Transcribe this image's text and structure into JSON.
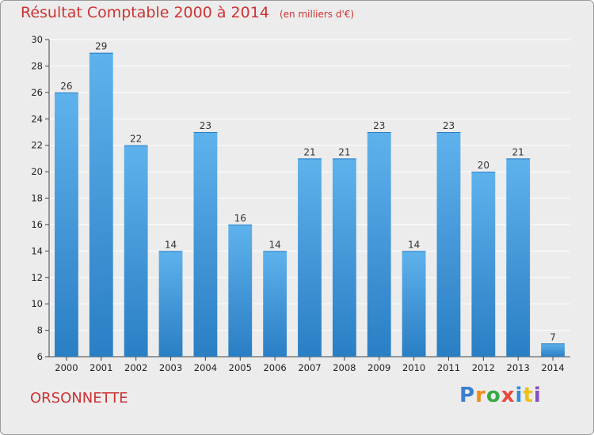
{
  "header": {
    "title": "Résultat Comptable 2000 à 2014",
    "subtitle": "(en milliers d'€)"
  },
  "footer": {
    "commune": "ORSONNETTE",
    "logo_text": "Proxiti",
    "logo_colors": [
      "#3a7fd0",
      "#f08a1c",
      "#39a845",
      "#e84a3a",
      "#2f8fd8",
      "#f0c01a",
      "#8a4ec2"
    ]
  },
  "colors": {
    "bar_light": "#5eb2ec",
    "bar_dark": "#2a7ec4",
    "grid": "#ffffff",
    "background": "#ececec"
  },
  "chart_data": {
    "type": "bar",
    "title": "Résultat Comptable 2000 à 2014",
    "subtitle": "(en milliers d'€)",
    "categories": [
      "2000",
      "2001",
      "2002",
      "2003",
      "2004",
      "2005",
      "2006",
      "2007",
      "2008",
      "2009",
      "2010",
      "2011",
      "2012",
      "2013",
      "2014"
    ],
    "values": [
      26,
      29,
      22,
      14,
      23,
      16,
      14,
      21,
      21,
      23,
      14,
      23,
      20,
      21,
      7
    ],
    "ylim": [
      6,
      30
    ],
    "yticks": [
      6,
      8,
      10,
      12,
      14,
      16,
      18,
      20,
      22,
      24,
      26,
      28,
      30
    ],
    "xlabel": "",
    "ylabel": "",
    "grid": true
  }
}
